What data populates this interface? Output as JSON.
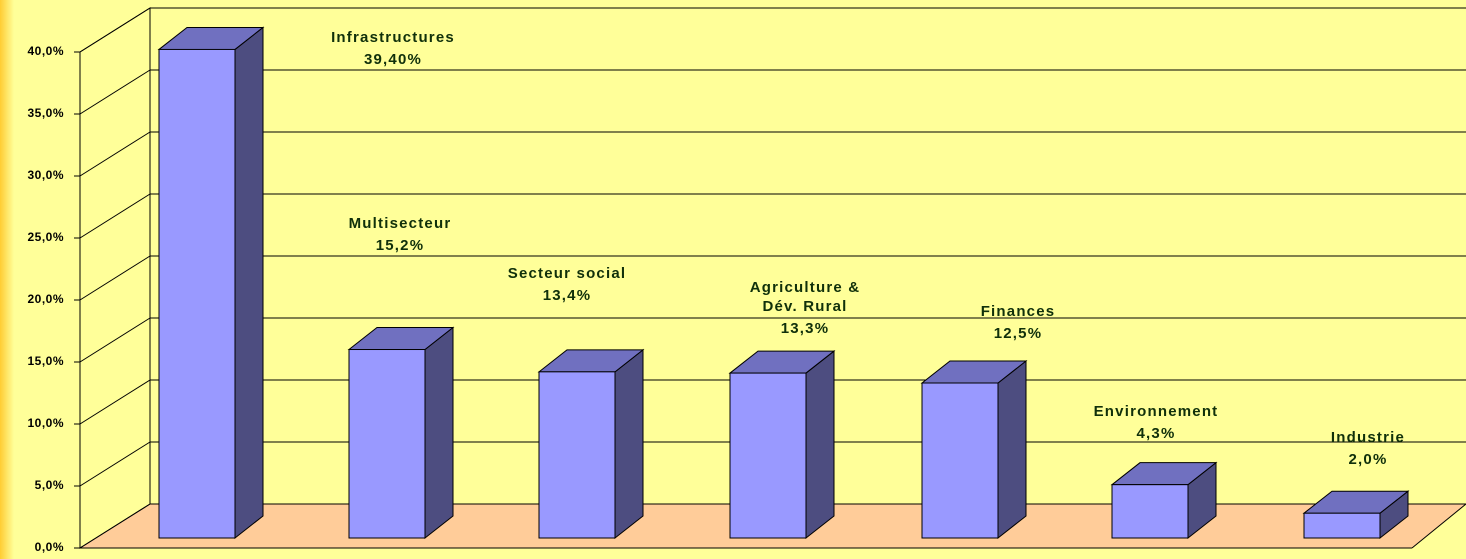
{
  "chart_data": {
    "type": "bar3d",
    "categories": [
      "Infrastructures",
      "Multisecteur",
      "Secteur social",
      "Agriculture & Dév. Rural",
      "Finances",
      "Environnement",
      "Industrie"
    ],
    "values": [
      39.4,
      15.2,
      13.4,
      13.3,
      12.5,
      4.3,
      2.0
    ],
    "value_labels": [
      "39,40%",
      "15,2%",
      "13,4%",
      "13,3%",
      "12,5%",
      "4,3%",
      "2,0%"
    ],
    "color": "#9999ff",
    "ylim": [
      0,
      40
    ],
    "yticks": [
      {
        "value": 0,
        "label": "0,0%"
      },
      {
        "value": 5,
        "label": "5,0%"
      },
      {
        "value": 10,
        "label": "10,0%"
      },
      {
        "value": 15,
        "label": "15,0%"
      },
      {
        "value": 20,
        "label": "20,0%"
      },
      {
        "value": 25,
        "label": "25,0%"
      },
      {
        "value": 30,
        "label": "30,0%"
      },
      {
        "value": 35,
        "label": "35,0%"
      },
      {
        "value": 40,
        "label": "40,0%"
      }
    ],
    "grid": true
  }
}
